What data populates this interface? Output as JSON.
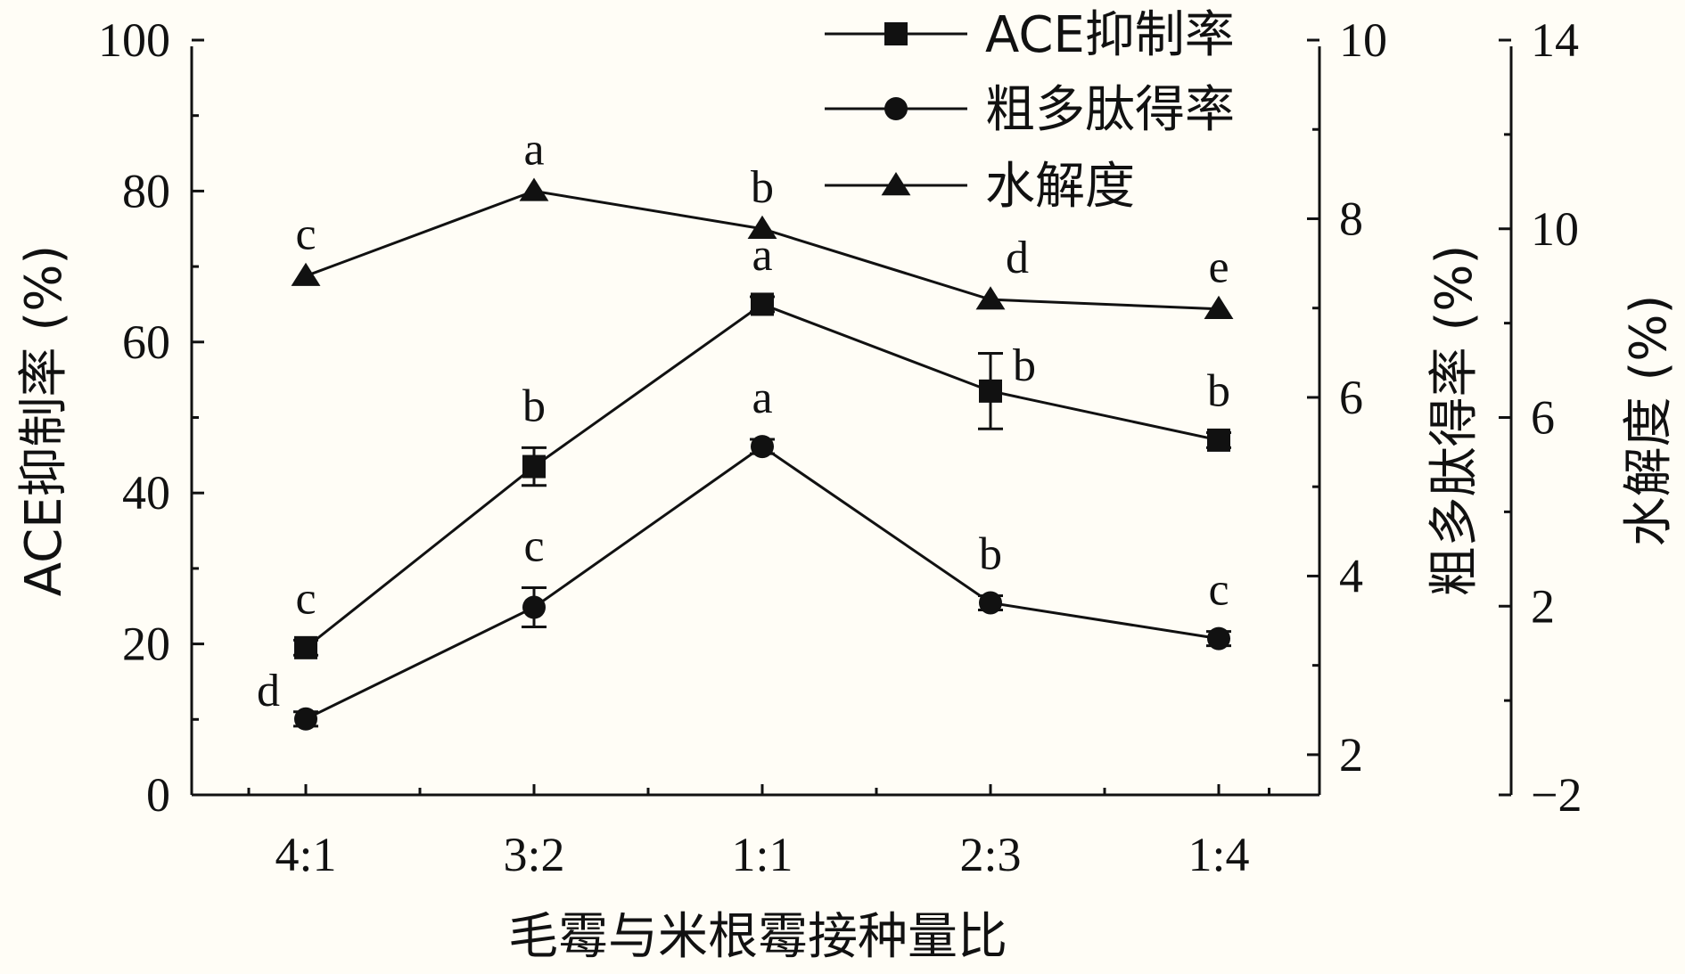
{
  "chart_data": {
    "type": "line",
    "categories": [
      "4:1",
      "3:2",
      "1:1",
      "2:3",
      "1:4"
    ],
    "xlabel": "毛霉与米根霉接种量比",
    "axes": {
      "left": {
        "label": "ACE抑制率 (%)",
        "ylim": [
          0,
          100
        ],
        "ticks": [
          "0",
          "20",
          "40",
          "60",
          "80",
          "100"
        ]
      },
      "right1": {
        "label": "粗多肽得率 (%)",
        "ylim": [
          1.55,
          10
        ],
        "ticks": [
          "2",
          "4",
          "6",
          "8",
          "10"
        ]
      },
      "right2": {
        "label": "水解度 (%)",
        "ylim": [
          -2,
          14
        ],
        "ticks": [
          "−2",
          "2",
          "6",
          "10",
          "14"
        ]
      }
    },
    "series": [
      {
        "name": "ACE抑制率",
        "marker": "square",
        "axis": "left",
        "values": [
          19.5,
          43.5,
          65,
          53.5,
          47
        ],
        "errors": [
          1.0,
          2.5,
          1.0,
          5.0,
          1.0
        ],
        "letters": [
          "c",
          "b",
          "a",
          "b",
          "b"
        ]
      },
      {
        "name": "粗多肽得率",
        "marker": "circle",
        "axis": "right1",
        "values": [
          2.4,
          3.65,
          5.45,
          3.7,
          3.3
        ],
        "errors": [
          0.08,
          0.22,
          0.08,
          0.08,
          0.08
        ],
        "letters": [
          "d",
          "c",
          "a",
          "b",
          "c"
        ]
      },
      {
        "name": "水解度",
        "marker": "triangle",
        "axis": "right2",
        "values": [
          9.0,
          10.8,
          10.0,
          8.5,
          8.3
        ],
        "errors": [
          0,
          0,
          0,
          0,
          0
        ],
        "letters": [
          "c",
          "a",
          "b",
          "d",
          "e"
        ]
      }
    ],
    "legend": {
      "position": "top-right"
    },
    "grid": false
  }
}
